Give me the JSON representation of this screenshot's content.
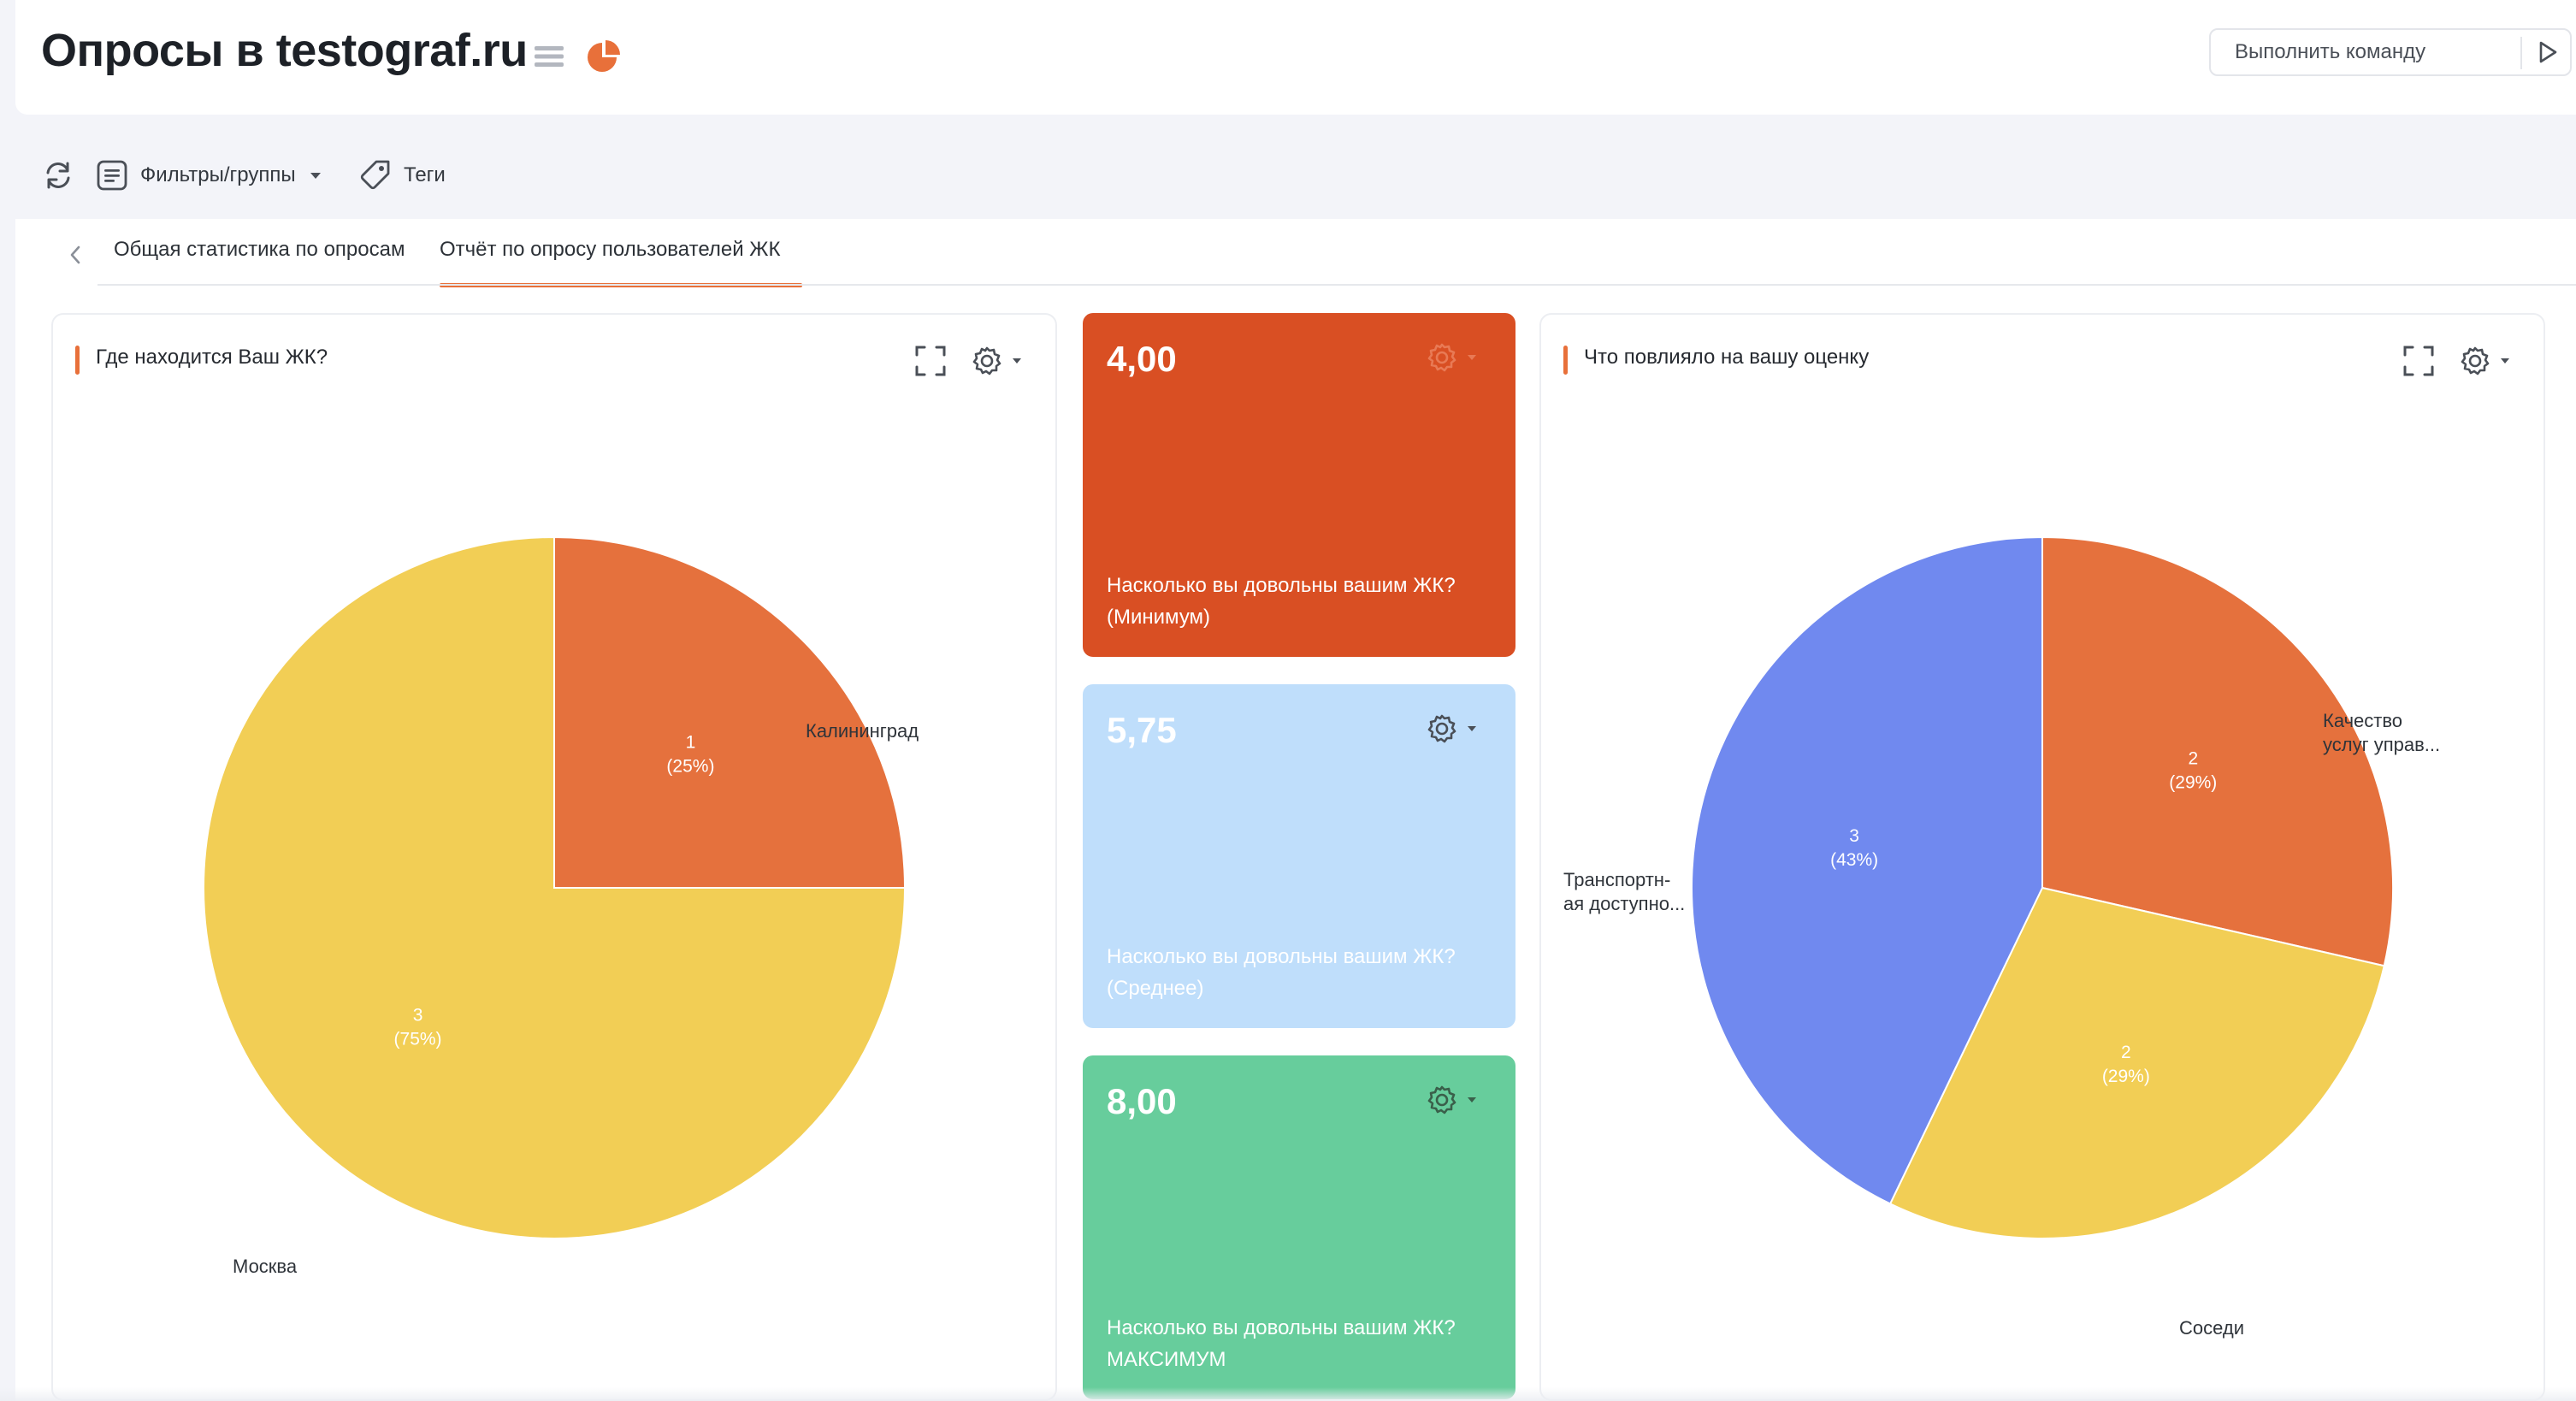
{
  "header": {
    "title": "Опросы в testograf.ru",
    "command": {
      "placeholder": "Выполнить команду"
    }
  },
  "toolbar": {
    "filters_label": "Фильтры/группы",
    "tags_label": "Теги"
  },
  "tabs": [
    {
      "label": "Общая статистика по опросам",
      "active": false
    },
    {
      "label": "Отчёт по опросу пользователей ЖК",
      "active": true
    }
  ],
  "colors": {
    "accent": "#e8703a",
    "kpi_min": "#d94f23",
    "kpi_avg": "#bfdefb",
    "kpi_max": "#67cd9c",
    "pie_orange": "#e5713d",
    "pie_yellow": "#f2ce55",
    "pie_blue": "#7089ef"
  },
  "kpis": [
    {
      "value": "4,00",
      "caption_line1": "Насколько вы довольны вашим ЖК?",
      "caption_line2": "(Минимум)"
    },
    {
      "value": "5,75",
      "caption_line1": "Насколько вы довольны вашим ЖК?",
      "caption_line2": "(Среднее)"
    },
    {
      "value": "8,00",
      "caption_line1": "Насколько вы довольны вашим ЖК?",
      "caption_line2": "МАКСИМУМ"
    }
  ],
  "chart_data": [
    {
      "type": "pie",
      "title": "Где находится Ваш ЖК?",
      "slices": [
        {
          "label": "Калининград",
          "value": 1,
          "count_text": "1",
          "percent_text": "(25%)",
          "color": "#e5713d"
        },
        {
          "label": "Москва",
          "value": 3,
          "count_text": "3",
          "percent_text": "(75%)",
          "color": "#f2ce55"
        }
      ]
    },
    {
      "type": "pie",
      "title": "Что повлияло на вашу оценку",
      "slices": [
        {
          "label": "Качество услуг управ...",
          "label_line1": "Качество",
          "label_line2": "услуг управ...",
          "value": 2,
          "count_text": "2",
          "percent_text": "(29%)",
          "color": "#e5713d"
        },
        {
          "label": "Соседи",
          "value": 2,
          "count_text": "2",
          "percent_text": "(29%)",
          "color": "#f2ce55"
        },
        {
          "label": "Транспортная доступно...",
          "label_line1": "Транспортн-",
          "label_line2": "ая доступно...",
          "value": 3,
          "count_text": "3",
          "percent_text": "(43%)",
          "color": "#7089ef"
        }
      ]
    }
  ]
}
